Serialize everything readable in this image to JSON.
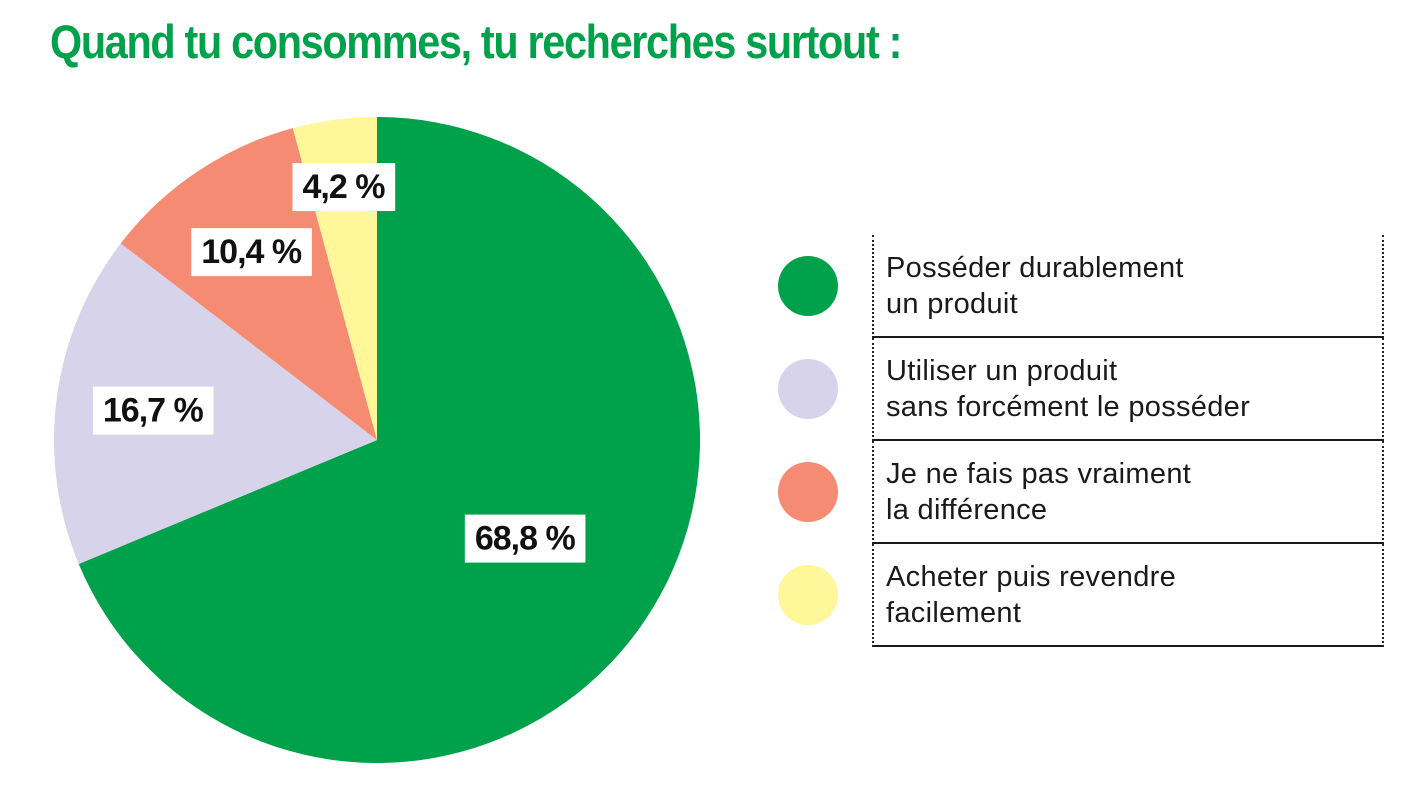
{
  "title": "Quand tu consommes,  tu recherches surtout :",
  "colors": {
    "title": "#00a14b",
    "label_text": "#111111",
    "label_box": "#ffffff"
  },
  "chart_data": {
    "type": "pie",
    "title": "Quand tu consommes,  tu recherches surtout :",
    "start": "12 o'clock",
    "direction": "clockwise",
    "slices": [
      {
        "value": 68.8,
        "label": "68,8 %",
        "color": "#00a14b",
        "legend": [
          "Posséder durablement",
          "un produit"
        ]
      },
      {
        "value": 16.7,
        "label": "16,7 %",
        "color": "#d6d3ea",
        "legend": [
          "Utiliser un produit",
          "sans forcément le posséder"
        ]
      },
      {
        "value": 10.4,
        "label": "10,4 %",
        "color": "#f58b73",
        "legend": [
          "Je ne fais pas vraiment",
          "la différence"
        ]
      },
      {
        "value": 4.2,
        "label": "4,2 %",
        "color": "#fff799",
        "legend": [
          "Acheter puis revendre",
          "facilement"
        ]
      }
    ],
    "legend_position": "right"
  }
}
